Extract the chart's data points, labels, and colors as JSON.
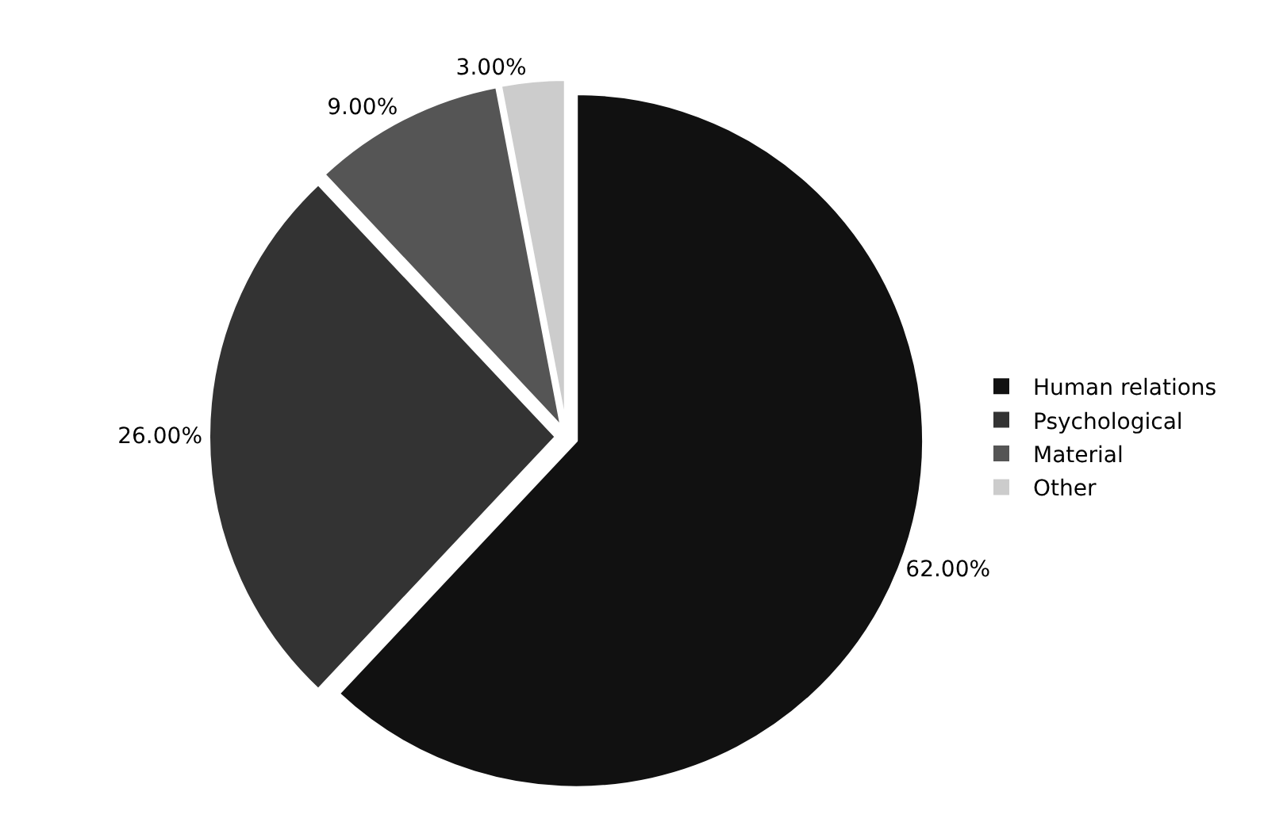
{
  "chart_data": {
    "type": "pie",
    "categories": [
      "Human relations",
      "Psychological",
      "Material",
      "Other"
    ],
    "values": [
      62,
      26,
      9,
      3
    ],
    "value_labels": [
      "62.00%",
      "26.00%",
      "9.00%",
      "3.00%"
    ],
    "colors": [
      "#111111",
      "#333333",
      "#555555",
      "#cccccc"
    ],
    "legend": "right"
  }
}
